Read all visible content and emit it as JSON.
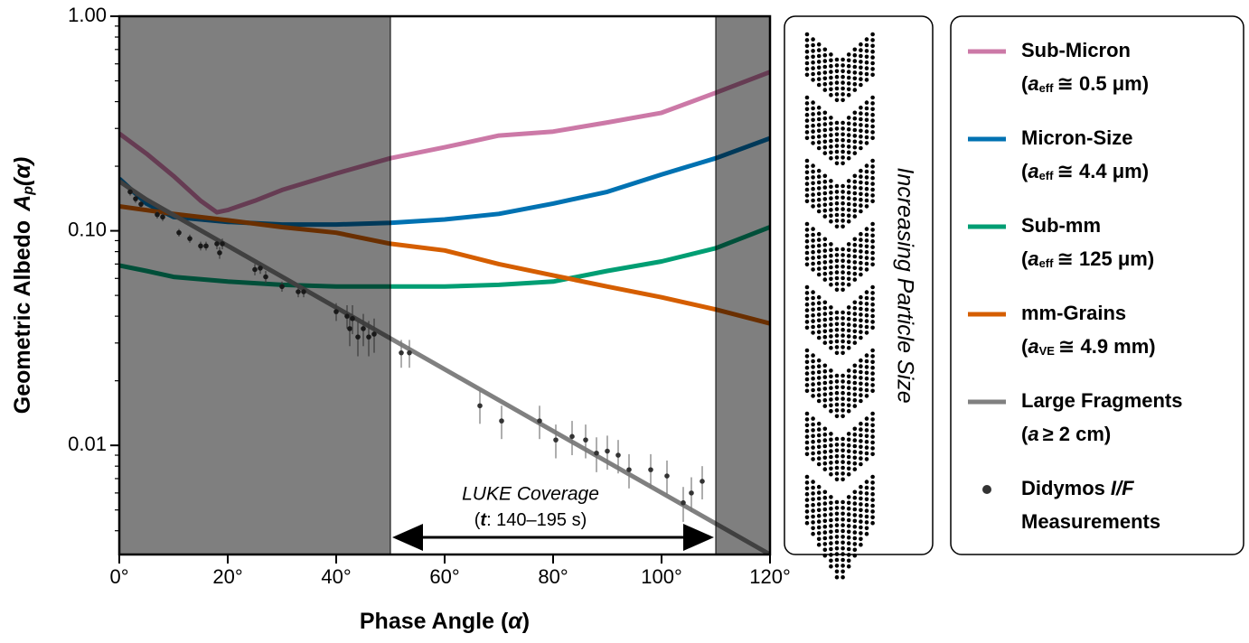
{
  "chart_data": {
    "type": "line",
    "xlabel": {
      "text": "Phase Angle (",
      "symbol": "α",
      "tail": ")"
    },
    "ylabel": {
      "text": "Geometric Albedo",
      "symbol": "A",
      "sub": "p",
      "tail": "(α)"
    },
    "xlim": [
      0,
      120
    ],
    "xticks": [
      {
        "value": 0,
        "label": "0°"
      },
      {
        "value": 20,
        "label": "20°"
      },
      {
        "value": 40,
        "label": "40°"
      },
      {
        "value": 60,
        "label": "60°"
      },
      {
        "value": 80,
        "label": "80°"
      },
      {
        "value": 100,
        "label": "100°"
      },
      {
        "value": 120,
        "label": "120°"
      }
    ],
    "ylim": [
      0.0031,
      1
    ],
    "yscale": "log",
    "yticks": [
      {
        "value": 1,
        "label": "1.00"
      },
      {
        "value": 0.1,
        "label": "0.10"
      },
      0.01
    ],
    "shaded_x": [
      [
        0,
        50
      ],
      [
        110,
        120
      ]
    ],
    "series": [
      {
        "name": "Sub-Micron",
        "size_label": {
          "open": "(",
          "symbol": "a",
          "sub": "eff",
          "text": "≅ 0.5 μm)"
        },
        "color": "#cc79a7",
        "x": [
          0,
          5,
          10,
          15,
          18,
          20,
          25,
          30,
          40,
          50,
          60,
          70,
          80,
          90,
          100,
          110,
          120
        ],
        "values": [
          0.284,
          0.229,
          0.18,
          0.138,
          0.122,
          0.125,
          0.138,
          0.155,
          0.185,
          0.218,
          0.245,
          0.278,
          0.29,
          0.32,
          0.355,
          0.44,
          0.55
        ]
      },
      {
        "name": "Micron-Size",
        "size_label": {
          "open": "(",
          "symbol": "a",
          "sub": "eff",
          "text": "≅ 4.4 μm)"
        },
        "color": "#0072b2",
        "x": [
          0,
          5,
          10,
          20,
          30,
          40,
          50,
          60,
          70,
          80,
          90,
          100,
          110,
          120
        ],
        "values": [
          0.175,
          0.134,
          0.116,
          0.11,
          0.107,
          0.107,
          0.109,
          0.113,
          0.12,
          0.134,
          0.152,
          0.183,
          0.218,
          0.27
        ]
      },
      {
        "name": "Sub-mm",
        "size_label": {
          "open": "(",
          "symbol": "a",
          "sub": "eff",
          "text": "≅ 125 μm)"
        },
        "color": "#009e73",
        "x": [
          0,
          5,
          10,
          20,
          30,
          40,
          50,
          60,
          70,
          80,
          90,
          100,
          110,
          120
        ],
        "values": [
          0.069,
          0.065,
          0.061,
          0.058,
          0.056,
          0.055,
          0.055,
          0.055,
          0.056,
          0.058,
          0.065,
          0.072,
          0.083,
          0.104
        ]
      },
      {
        "name": "mm-Grains",
        "size_label": {
          "open": "(",
          "symbol": "a",
          "sub": "VE",
          "text": "≅ 4.9 mm)"
        },
        "color": "#d55e00",
        "x": [
          0,
          10,
          20,
          30,
          40,
          50,
          60,
          70,
          80,
          90,
          100,
          110,
          120
        ],
        "values": [
          0.13,
          0.12,
          0.112,
          0.104,
          0.098,
          0.087,
          0.081,
          0.07,
          0.062,
          0.055,
          0.049,
          0.043,
          0.037
        ]
      },
      {
        "name": "Large Fragments",
        "size_label": {
          "open": "(",
          "symbol": "a",
          "text": "≥ 2 cm)"
        },
        "color": "#808080",
        "x": [
          0,
          5,
          120
        ],
        "values": [
          0.17,
          0.14,
          0.0031
        ]
      }
    ],
    "measurements": {
      "name": {
        "text": "Didymos",
        "symbol": "I/F",
        "tail": "Measurements"
      },
      "color": "#333333",
      "x": [
        2,
        3,
        4,
        7,
        8,
        11,
        13,
        15,
        16,
        18,
        18.5,
        19,
        25,
        26,
        27,
        30,
        33,
        34,
        40,
        42,
        42.5,
        43,
        44,
        45,
        46,
        47,
        52,
        53.5,
        66.5,
        70.5,
        77.5,
        80.5,
        83.5,
        86,
        88,
        90,
        92,
        94,
        98,
        101,
        104,
        105.5,
        107.5
      ],
      "values": [
        0.152,
        0.141,
        0.133,
        0.119,
        0.116,
        0.098,
        0.092,
        0.085,
        0.085,
        0.087,
        0.079,
        0.087,
        0.066,
        0.067,
        0.061,
        0.055,
        0.052,
        0.052,
        0.042,
        0.04,
        0.035,
        0.039,
        0.032,
        0.035,
        0.032,
        0.033,
        0.027,
        0.027,
        0.0153,
        0.013,
        0.013,
        0.0106,
        0.011,
        0.0106,
        0.0092,
        0.0094,
        0.009,
        0.0077,
        0.0077,
        0.0072,
        0.0054,
        0.006,
        0.0068
      ],
      "yerr": [
        0.006,
        0.006,
        0.005,
        0.005,
        0.005,
        0.004,
        0.004,
        0.004,
        0.004,
        0.005,
        0.005,
        0.005,
        0.004,
        0.004,
        0.004,
        0.003,
        0.003,
        0.003,
        0.004,
        0.005,
        0.006,
        0.006,
        0.006,
        0.006,
        0.006,
        0.006,
        0.004,
        0.004,
        0.0027,
        0.0023,
        0.0023,
        0.0019,
        0.002,
        0.0019,
        0.0017,
        0.0017,
        0.0016,
        0.0014,
        0.0014,
        0.0013,
        0.001,
        0.0011,
        0.0012
      ]
    },
    "annotation": {
      "text": "LUKE Coverage",
      "detail": {
        "open": "(",
        "symbol": "t",
        "text": ": 140–195 s)"
      },
      "x_range": [
        50,
        110
      ]
    },
    "side_label": "Increasing Particle Size"
  }
}
